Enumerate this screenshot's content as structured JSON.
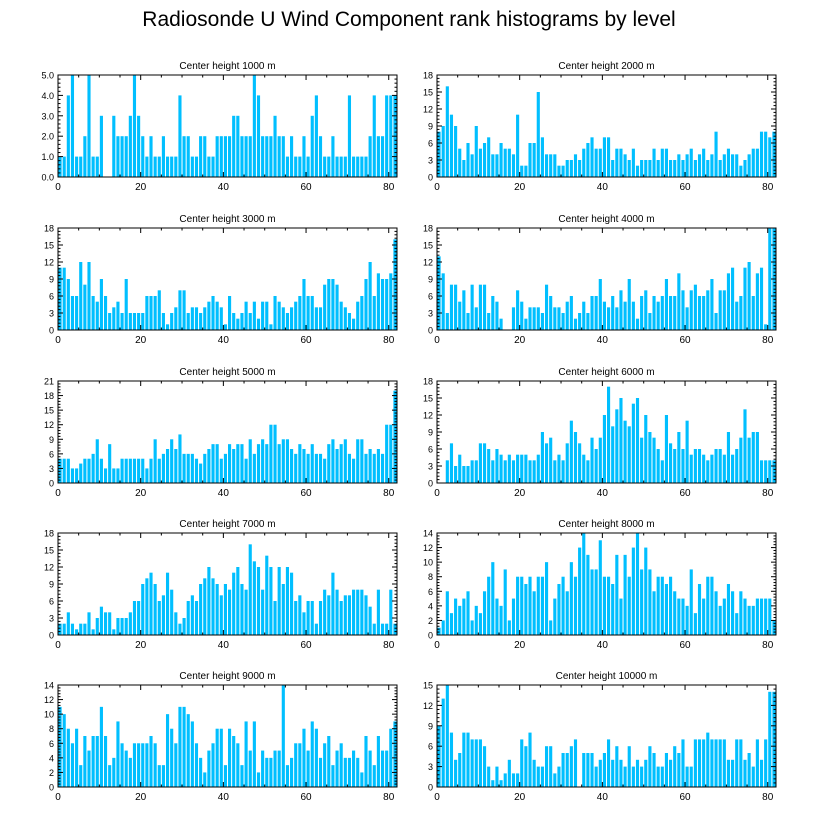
{
  "figure_title": "Radiosonde U Wind Component rank histograms by level",
  "colors": {
    "bar": "#00bfff",
    "bar_edge": "#ffffff",
    "axis": "#000000"
  },
  "chart_data": [
    {
      "type": "bar",
      "title": "Center height 1000 m",
      "xlim": [
        0,
        82
      ],
      "ylim": [
        0,
        5
      ],
      "xticks": [
        0,
        20,
        40,
        60,
        80
      ],
      "yticks": [
        0,
        1,
        2,
        3,
        4,
        5
      ],
      "ytick_labels": [
        "0.0",
        "1.0",
        "2.0",
        "3.0",
        "4.0",
        "5.0"
      ],
      "values": [
        1,
        1,
        4,
        5,
        1,
        1,
        2,
        5,
        1,
        1,
        3,
        0,
        0,
        3,
        2,
        2,
        2,
        3,
        5,
        3,
        2,
        1,
        2,
        1,
        1,
        2,
        1,
        1,
        1,
        4,
        2,
        2,
        1,
        1,
        2,
        2,
        1,
        1,
        2,
        2,
        2,
        2,
        3,
        3,
        2,
        2,
        2,
        5,
        4,
        2,
        2,
        2,
        3,
        2,
        2,
        1,
        2,
        1,
        1,
        2,
        1,
        3,
        4,
        2,
        1,
        1,
        2,
        1,
        1,
        1,
        4,
        1,
        1,
        1,
        1,
        2,
        4,
        2,
        2,
        4,
        4,
        4
      ]
    },
    {
      "type": "bar",
      "title": "Center height 2000 m",
      "xlim": [
        0,
        82
      ],
      "ylim": [
        0,
        18
      ],
      "xticks": [
        0,
        20,
        40,
        60,
        80
      ],
      "yticks": [
        0,
        3,
        6,
        9,
        12,
        15,
        18
      ],
      "ytick_labels": [
        "0",
        "3",
        "6",
        "9",
        "12",
        "15",
        "18"
      ],
      "values": [
        8,
        9,
        16,
        11,
        9,
        5,
        3,
        6,
        4,
        9,
        5,
        6,
        7,
        4,
        4,
        6,
        5,
        5,
        4,
        11,
        2,
        2,
        6,
        6,
        15,
        7,
        4,
        4,
        4,
        2,
        2,
        3,
        3,
        4,
        3,
        5,
        6,
        7,
        5,
        5,
        7,
        7,
        3,
        5,
        5,
        4,
        3,
        5,
        2,
        3,
        3,
        3,
        5,
        3,
        5,
        5,
        3,
        3,
        4,
        3,
        4,
        5,
        3,
        4,
        5,
        3,
        4,
        8,
        3,
        4,
        5,
        4,
        4,
        2,
        3,
        4,
        5,
        5,
        8,
        8,
        7,
        8
      ]
    },
    {
      "type": "bar",
      "title": "Center height 3000 m",
      "xlim": [
        0,
        82
      ],
      "ylim": [
        0,
        18
      ],
      "xticks": [
        0,
        20,
        40,
        60,
        80
      ],
      "yticks": [
        0,
        3,
        6,
        9,
        12,
        15,
        18
      ],
      "ytick_labels": [
        "0",
        "3",
        "6",
        "9",
        "12",
        "15",
        "18"
      ],
      "values": [
        11,
        11,
        9,
        6,
        6,
        12,
        8,
        12,
        6,
        5,
        9,
        6,
        3,
        4,
        5,
        3,
        9,
        3,
        3,
        3,
        3,
        6,
        6,
        6,
        7,
        3,
        1,
        3,
        4,
        7,
        7,
        3,
        4,
        4,
        3,
        4,
        5,
        6,
        5,
        4,
        1,
        6,
        3,
        2,
        3,
        5,
        3,
        5,
        2,
        5,
        5,
        1,
        6,
        5,
        4,
        3,
        4,
        5,
        6,
        9,
        6,
        6,
        4,
        4,
        8,
        9,
        9,
        8,
        5,
        4,
        3,
        2,
        5,
        6,
        9,
        12,
        6,
        10,
        9,
        9,
        10,
        16
      ]
    },
    {
      "type": "bar",
      "title": "Center height 4000 m",
      "xlim": [
        0,
        82
      ],
      "ylim": [
        0,
        18
      ],
      "xticks": [
        0,
        20,
        40,
        60,
        80
      ],
      "yticks": [
        0,
        3,
        6,
        9,
        12,
        15,
        18
      ],
      "ytick_labels": [
        "0",
        "3",
        "6",
        "9",
        "12",
        "15",
        "18"
      ],
      "values": [
        13,
        10,
        3,
        8,
        8,
        5,
        7,
        3,
        8,
        4,
        8,
        8,
        3,
        6,
        5,
        2,
        0,
        0,
        4,
        7,
        5,
        2,
        4,
        4,
        4,
        3,
        8,
        6,
        4,
        4,
        3,
        5,
        6,
        2,
        3,
        5,
        3,
        6,
        6,
        9,
        5,
        4,
        6,
        4,
        7,
        5,
        9,
        5,
        2,
        6,
        7,
        3,
        6,
        5,
        6,
        9,
        6,
        6,
        10,
        7,
        4,
        7,
        8,
        6,
        6,
        7,
        9,
        3,
        7,
        7,
        10,
        11,
        5,
        6,
        11,
        12,
        6,
        10,
        11,
        1,
        18,
        18
      ]
    },
    {
      "type": "bar",
      "title": "Center height 5000 m",
      "xlim": [
        0,
        82
      ],
      "ylim": [
        0,
        21
      ],
      "xticks": [
        0,
        20,
        40,
        60,
        80
      ],
      "yticks": [
        0,
        3,
        6,
        9,
        12,
        15,
        18,
        21
      ],
      "ytick_labels": [
        "0",
        "3",
        "6",
        "9",
        "12",
        "15",
        "18",
        "21"
      ],
      "values": [
        5,
        5,
        5,
        3,
        3,
        4,
        5,
        5,
        6,
        9,
        5,
        3,
        8,
        3,
        3,
        5,
        5,
        5,
        5,
        5,
        5,
        3,
        5,
        9,
        5,
        6,
        7,
        9,
        7,
        10,
        6,
        6,
        6,
        5,
        4,
        6,
        7,
        8,
        8,
        5,
        6,
        8,
        7,
        8,
        8,
        5,
        9,
        6,
        8,
        9,
        8,
        12,
        12,
        8,
        9,
        9,
        7,
        6,
        8,
        7,
        6,
        8,
        6,
        6,
        5,
        8,
        9,
        7,
        8,
        9,
        6,
        5,
        9,
        9,
        6,
        7,
        6,
        7,
        6,
        12,
        12,
        19
      ]
    },
    {
      "type": "bar",
      "title": "Center height 6000 m",
      "xlim": [
        0,
        82
      ],
      "ylim": [
        0,
        18
      ],
      "xticks": [
        0,
        20,
        40,
        60,
        80
      ],
      "yticks": [
        0,
        3,
        6,
        9,
        12,
        15,
        18
      ],
      "ytick_labels": [
        "0",
        "3",
        "6",
        "9",
        "12",
        "15",
        "18"
      ],
      "values": [
        0,
        0,
        4,
        7,
        3,
        5,
        3,
        3,
        4,
        4,
        7,
        7,
        6,
        4,
        6,
        5,
        4,
        5,
        4,
        5,
        5,
        5,
        4,
        4,
        5,
        9,
        7,
        8,
        4,
        5,
        4,
        7,
        11,
        9,
        7,
        5,
        4,
        8,
        6,
        8,
        12,
        17,
        10,
        13,
        15,
        11,
        10,
        14,
        15,
        8,
        12,
        9,
        8,
        6,
        4,
        12,
        7,
        6,
        9,
        6,
        11,
        5,
        6,
        6,
        5,
        4,
        5,
        6,
        6,
        5,
        9,
        5,
        6,
        8,
        13,
        8,
        9,
        9,
        4,
        4,
        4,
        4
      ]
    },
    {
      "type": "bar",
      "title": "Center height 7000 m",
      "xlim": [
        0,
        82
      ],
      "ylim": [
        0,
        18
      ],
      "xticks": [
        0,
        20,
        40,
        60,
        80
      ],
      "yticks": [
        0,
        3,
        6,
        9,
        12,
        15,
        18
      ],
      "ytick_labels": [
        "0",
        "3",
        "6",
        "9",
        "12",
        "15",
        "18"
      ],
      "values": [
        2,
        2,
        4,
        2,
        1,
        2,
        2,
        4,
        1,
        3,
        5,
        4,
        4,
        1,
        3,
        3,
        3,
        4,
        6,
        6,
        9,
        10,
        11,
        9,
        6,
        7,
        11,
        8,
        4,
        2,
        3,
        6,
        7,
        6,
        9,
        10,
        12,
        10,
        9,
        7,
        9,
        8,
        11,
        12,
        9,
        8,
        16,
        13,
        12,
        8,
        14,
        12,
        6,
        12,
        9,
        12,
        11,
        6,
        7,
        4,
        6,
        6,
        2,
        6,
        8,
        7,
        11,
        8,
        6,
        7,
        7,
        8,
        8,
        8,
        7,
        5,
        2,
        8,
        2,
        2,
        8,
        2
      ]
    },
    {
      "type": "bar",
      "title": "Center height 8000 m",
      "xlim": [
        0,
        82
      ],
      "ylim": [
        0,
        14
      ],
      "xticks": [
        0,
        20,
        40,
        60,
        80
      ],
      "yticks": [
        0,
        2,
        4,
        6,
        8,
        10,
        12,
        14
      ],
      "ytick_labels": [
        "0",
        "2",
        "4",
        "6",
        "8",
        "10",
        "12",
        "14"
      ],
      "values": [
        1,
        2,
        6,
        3,
        5,
        4,
        5,
        6,
        2,
        4,
        3,
        6,
        8,
        10,
        5,
        4,
        9,
        2,
        5,
        8,
        8,
        7,
        8,
        6,
        8,
        8,
        10,
        2,
        5,
        7,
        8,
        6,
        10,
        8,
        12,
        14,
        11,
        9,
        9,
        13,
        8,
        8,
        7,
        11,
        5,
        11,
        8,
        12,
        14,
        9,
        12,
        9,
        6,
        8,
        8,
        7,
        8,
        6,
        5,
        5,
        4,
        9,
        3,
        7,
        5,
        8,
        8,
        6,
        4,
        5,
        7,
        6,
        3,
        6,
        5,
        4,
        4,
        5,
        5,
        5,
        5,
        2
      ]
    },
    {
      "type": "bar",
      "title": "Center height 9000 m",
      "xlim": [
        0,
        82
      ],
      "ylim": [
        0,
        14
      ],
      "xticks": [
        0,
        20,
        40,
        60,
        80
      ],
      "yticks": [
        0,
        2,
        4,
        6,
        8,
        10,
        12,
        14
      ],
      "ytick_labels": [
        "0",
        "2",
        "4",
        "6",
        "8",
        "10",
        "12",
        "14"
      ],
      "values": [
        11,
        10,
        8,
        6,
        8,
        3,
        7,
        5,
        7,
        7,
        11,
        7,
        3,
        4,
        9,
        6,
        5,
        4,
        6,
        6,
        6,
        6,
        7,
        6,
        3,
        3,
        10,
        8,
        6,
        11,
        11,
        10,
        9,
        6,
        4,
        2,
        5,
        6,
        8,
        8,
        3,
        8,
        7,
        6,
        3,
        9,
        5,
        9,
        2,
        5,
        4,
        4,
        5,
        5,
        14,
        3,
        4,
        6,
        6,
        8,
        5,
        9,
        8,
        4,
        6,
        7,
        3,
        5,
        6,
        4,
        4,
        5,
        4,
        2,
        7,
        5,
        3,
        7,
        5,
        5,
        8,
        9
      ]
    },
    {
      "type": "bar",
      "title": "Center height 10000 m",
      "xlim": [
        0,
        82
      ],
      "ylim": [
        0,
        15
      ],
      "xticks": [
        0,
        20,
        40,
        60,
        80
      ],
      "yticks": [
        0,
        3,
        6,
        9,
        12,
        15
      ],
      "ytick_labels": [
        "0",
        "3",
        "6",
        "9",
        "12",
        "15"
      ],
      "values": [
        9,
        13,
        15,
        8,
        4,
        5,
        8,
        8,
        7,
        7,
        7,
        6,
        3,
        1,
        3,
        1,
        2,
        4,
        2,
        2,
        7,
        6,
        8,
        4,
        3,
        3,
        6,
        6,
        2,
        3,
        5,
        5,
        6,
        7,
        0,
        5,
        5,
        5,
        3,
        4,
        5,
        7,
        4,
        6,
        4,
        3,
        6,
        3,
        4,
        3,
        4,
        6,
        5,
        3,
        3,
        5,
        4,
        6,
        5,
        7,
        3,
        3,
        7,
        7,
        7,
        8,
        7,
        7,
        7,
        7,
        4,
        4,
        7,
        7,
        4,
        5,
        3,
        7,
        4,
        7,
        14,
        14
      ]
    }
  ]
}
